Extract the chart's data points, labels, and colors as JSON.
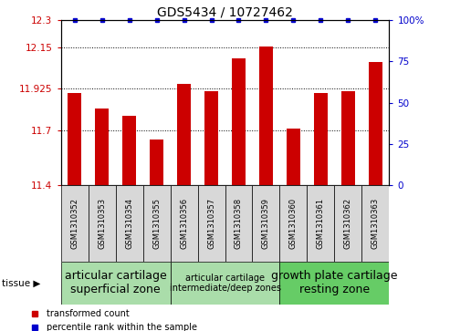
{
  "title": "GDS5434 / 10727462",
  "samples": [
    "GSM1310352",
    "GSM1310353",
    "GSM1310354",
    "GSM1310355",
    "GSM1310356",
    "GSM1310357",
    "GSM1310358",
    "GSM1310359",
    "GSM1310360",
    "GSM1310361",
    "GSM1310362",
    "GSM1310363"
  ],
  "bar_values": [
    11.9,
    11.82,
    11.78,
    11.65,
    11.95,
    11.91,
    12.09,
    12.155,
    11.71,
    11.9,
    11.91,
    12.07
  ],
  "percentile_values": [
    100,
    100,
    100,
    100,
    100,
    100,
    100,
    100,
    100,
    100,
    100,
    100
  ],
  "bar_color": "#cc0000",
  "percentile_color": "#0000cc",
  "ylim_left": [
    11.4,
    12.3
  ],
  "yticks_left": [
    11.4,
    11.7,
    11.925,
    12.15,
    12.3
  ],
  "ytick_labels_left": [
    "11.4",
    "11.7",
    "11.925",
    "12.15",
    "12.3"
  ],
  "ylim_right": [
    0,
    100
  ],
  "yticks_right": [
    0,
    25,
    50,
    75,
    100
  ],
  "ytick_labels_right": [
    "0",
    "25",
    "50",
    "75",
    "100%"
  ],
  "tissue_groups": [
    {
      "label": "articular cartilage\nsuperficial zone",
      "start": 0,
      "end": 4,
      "color": "#aaddaa",
      "fontsize": 9
    },
    {
      "label": "articular cartilage\nintermediate/deep zones",
      "start": 4,
      "end": 8,
      "color": "#aaddaa",
      "fontsize": 7
    },
    {
      "label": "growth plate cartilage\nresting zone",
      "start": 8,
      "end": 12,
      "color": "#66cc66",
      "fontsize": 9
    }
  ],
  "legend_items": [
    {
      "label": "transformed count",
      "color": "#cc0000"
    },
    {
      "label": "percentile rank within the sample",
      "color": "#0000cc"
    }
  ],
  "background_color": "#ffffff",
  "bar_width": 0.5,
  "title_fontsize": 10,
  "tick_fontsize": 7.5,
  "sample_fontsize": 6,
  "tissue_label_fontsize": 7.5,
  "legend_fontsize": 7
}
